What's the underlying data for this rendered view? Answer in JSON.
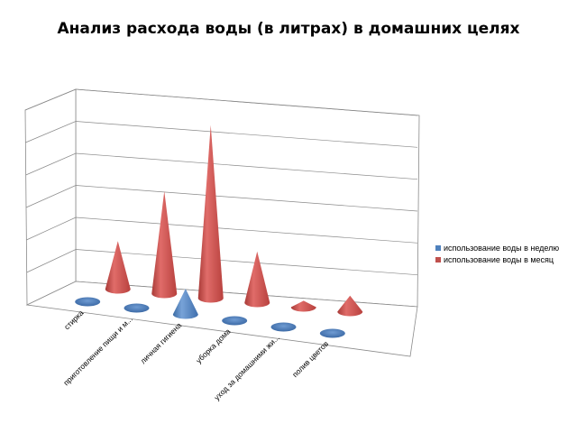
{
  "chart_data": {
    "type": "bar",
    "style": "3d-cone",
    "title": "Анализ расхода  воды (в литрах) в домашних целях",
    "xlabel": "",
    "ylabel": "",
    "grid": true,
    "categories": [
      "стирка",
      "приготовление пищи и м...",
      "личная гигиена",
      "уборка дома",
      "уход за домашними жи...",
      "полив цветов"
    ],
    "series": [
      {
        "name": "использование воды в неделю",
        "color": "#4f81bd",
        "values": [
          0,
          0,
          80,
          0,
          0,
          0
        ]
      },
      {
        "name": "использование воды в месяц",
        "color": "#c0504d",
        "values": [
          150,
          320,
          540,
          160,
          20,
          50
        ]
      }
    ],
    "ylim": [
      0,
      600
    ],
    "legend": "right"
  }
}
